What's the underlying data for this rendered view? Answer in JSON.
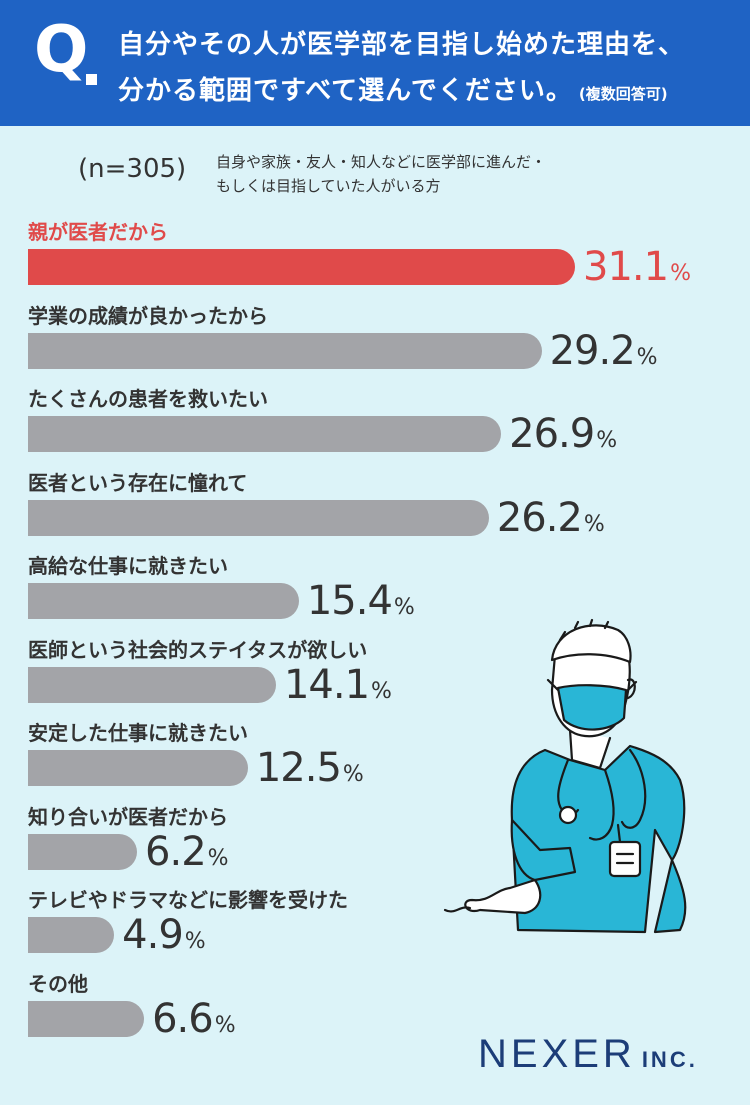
{
  "header": {
    "q_mark": "Q",
    "line1": "自分やその人が医学部を目指し始めた理由を、",
    "line2": "分かる範囲ですべて選んでください。",
    "note": "(複数回答可)"
  },
  "sample": {
    "n_label": "(n=305)",
    "desc_line1": "自身や家族・友人・知人などに医学部に進んだ・",
    "desc_line2": "もしくは目指していた人がいる方"
  },
  "chart_data": {
    "type": "bar",
    "orientation": "horizontal",
    "unit": "%",
    "categories": [
      "親が医者だから",
      "学業の成績が良かったから",
      "たくさんの患者を救いたい",
      "医者という存在に憧れて",
      "高給な仕事に就きたい",
      "医師という社会的ステイタスが欲しい",
      "安定した仕事に就きたい",
      "知り合いが医者だから",
      "テレビやドラマなどに影響を受けた",
      "その他"
    ],
    "values": [
      31.1,
      29.2,
      26.9,
      26.2,
      15.4,
      14.1,
      12.5,
      6.2,
      4.9,
      6.6
    ],
    "value_labels": [
      "31.1",
      "29.2",
      "26.9",
      "26.2",
      "15.4",
      "14.1",
      "12.5",
      "6.2",
      "4.9",
      "6.6"
    ],
    "highlight_index": 0,
    "colors": {
      "highlight": "#e04a4a",
      "bar": "#a3a4a8"
    }
  },
  "logo": {
    "name": "NEXER",
    "suffix": "INC."
  },
  "colors": {
    "header_bg": "#1f63c4",
    "page_bg": "#dcf3f8",
    "illustration_fill": "#29b6d6",
    "logo": "#1c3d78"
  },
  "illustration": {
    "icon": "doctor-in-scrubs-icon"
  }
}
